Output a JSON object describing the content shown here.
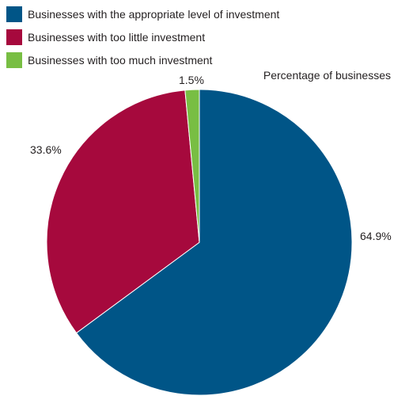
{
  "chart_data": {
    "type": "pie",
    "measure_label": "Percentage of businesses",
    "slices": [
      {
        "label": "Businesses with the appropriate level of investment",
        "value": 64.9,
        "display": "64.9%",
        "color": "#005587"
      },
      {
        "label": "Businesses with too little investment",
        "value": 33.6,
        "display": "33.6%",
        "color": "#a6093d"
      },
      {
        "label": "Businesses with too much investment",
        "value": 1.5,
        "display": "1.5%",
        "color": "#78be43"
      }
    ],
    "legend_position": "top-left"
  }
}
